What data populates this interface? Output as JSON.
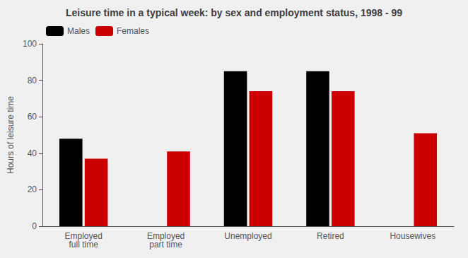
{
  "chart_data": {
    "type": "bar",
    "title": "Leisure time in a typical week: by sex and employment status, 1998 - 99",
    "ylabel": "Hours of leisure time",
    "categories": [
      "Employed\nfull time",
      "Employed\npart time",
      "Unemployed",
      "Retired",
      "Housewives"
    ],
    "series": [
      {
        "name": "Males",
        "color": "#000000",
        "values": [
          48,
          0,
          85,
          85,
          0
        ]
      },
      {
        "name": "Females",
        "color": "#cc0000",
        "values": [
          37,
          41,
          74,
          74,
          51
        ]
      }
    ],
    "ylim": [
      0,
      100
    ],
    "yticks": [
      0,
      20,
      40,
      60,
      80,
      100
    ],
    "grid": false,
    "legend": "upper left"
  }
}
